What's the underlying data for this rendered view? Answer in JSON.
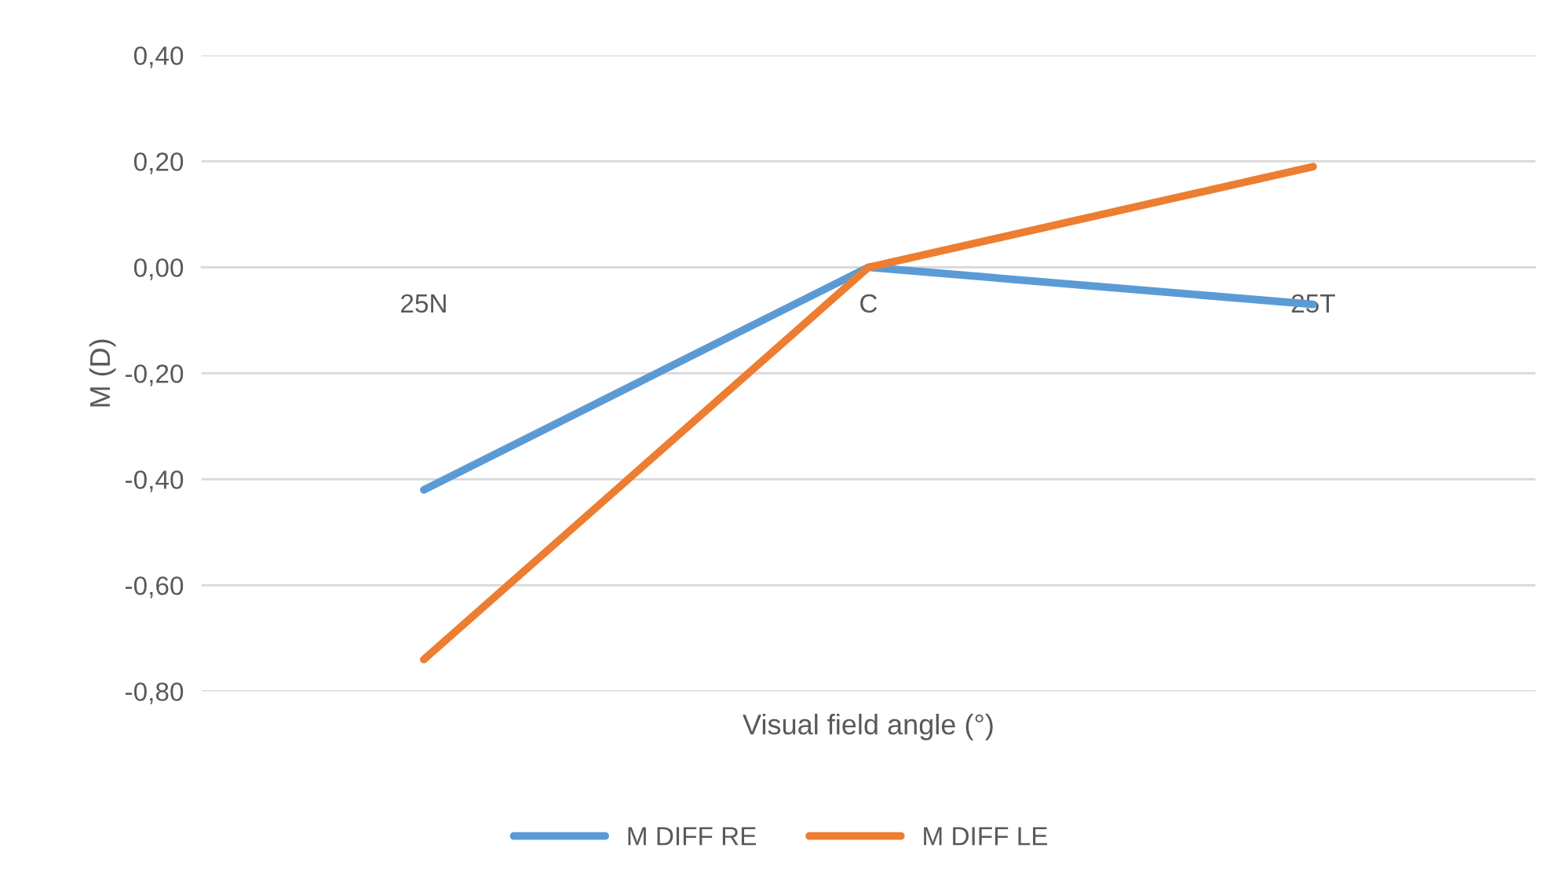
{
  "chart_data": {
    "type": "line",
    "xlabel": "Visual field angle (°)",
    "ylabel": "M (D)",
    "categories": [
      "25N",
      "C",
      "25T"
    ],
    "series": [
      {
        "name": "M DIFF RE",
        "color": "#5b9bd5",
        "values": [
          -0.42,
          0,
          -0.07
        ]
      },
      {
        "name": "M DIFF LE",
        "color": "#ed7d31",
        "values": [
          -0.74,
          0,
          0.19
        ]
      }
    ],
    "ylim": [
      -0.8,
      0.4
    ],
    "yticks": [
      {
        "value": 0.4,
        "label": "0,40"
      },
      {
        "value": 0.2,
        "label": "0,20"
      },
      {
        "value": 0,
        "label": "0,00"
      },
      {
        "value": -0.2,
        "label": "-0,20"
      },
      {
        "value": -0.4,
        "label": "-0,40"
      },
      {
        "value": -0.6,
        "label": "-0,60"
      },
      {
        "value": -0.8,
        "label": "-0,80"
      }
    ],
    "grid": "y",
    "legend": "bottom",
    "marker": "none",
    "line_style": "solid"
  }
}
